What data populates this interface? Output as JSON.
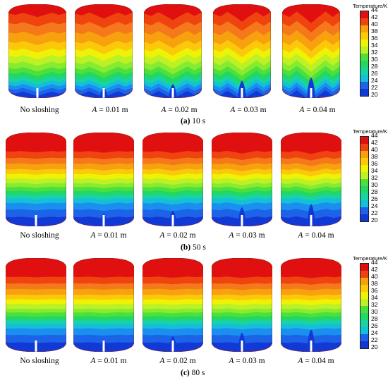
{
  "colors": [
    "#e01010",
    "#ef4310",
    "#f5781a",
    "#f7a10f",
    "#fcc90a",
    "#eef206",
    "#bdf025",
    "#87eb30",
    "#4de03a",
    "#22d764",
    "#19d4a2",
    "#14bfd8",
    "#1a8ff0",
    "#1c63e8",
    "#1239d6"
  ],
  "legend": {
    "title": "Temperature/K",
    "ticks": [
      "44",
      "42",
      "40",
      "38",
      "36",
      "34",
      "32",
      "30",
      "28",
      "26",
      "24",
      "22",
      "20"
    ]
  },
  "cases": [
    {
      "prefix": "No sloshing",
      "amp": "",
      "suffix": ""
    },
    {
      "prefix": "",
      "amp": "A",
      "suffix": " = 0.01 m"
    },
    {
      "prefix": "",
      "amp": "A",
      "suffix": " = 0.02 m"
    },
    {
      "prefix": "",
      "amp": "A",
      "suffix": " = 0.03 m"
    },
    {
      "prefix": "",
      "amp": "A",
      "suffix": " = 0.04 m"
    }
  ],
  "panels": [
    {
      "letter": "(a)",
      "time": " 10 s"
    },
    {
      "letter": "(b)",
      "time": " 50 s"
    },
    {
      "letter": "(c)",
      "time": " 80 s"
    }
  ]
}
